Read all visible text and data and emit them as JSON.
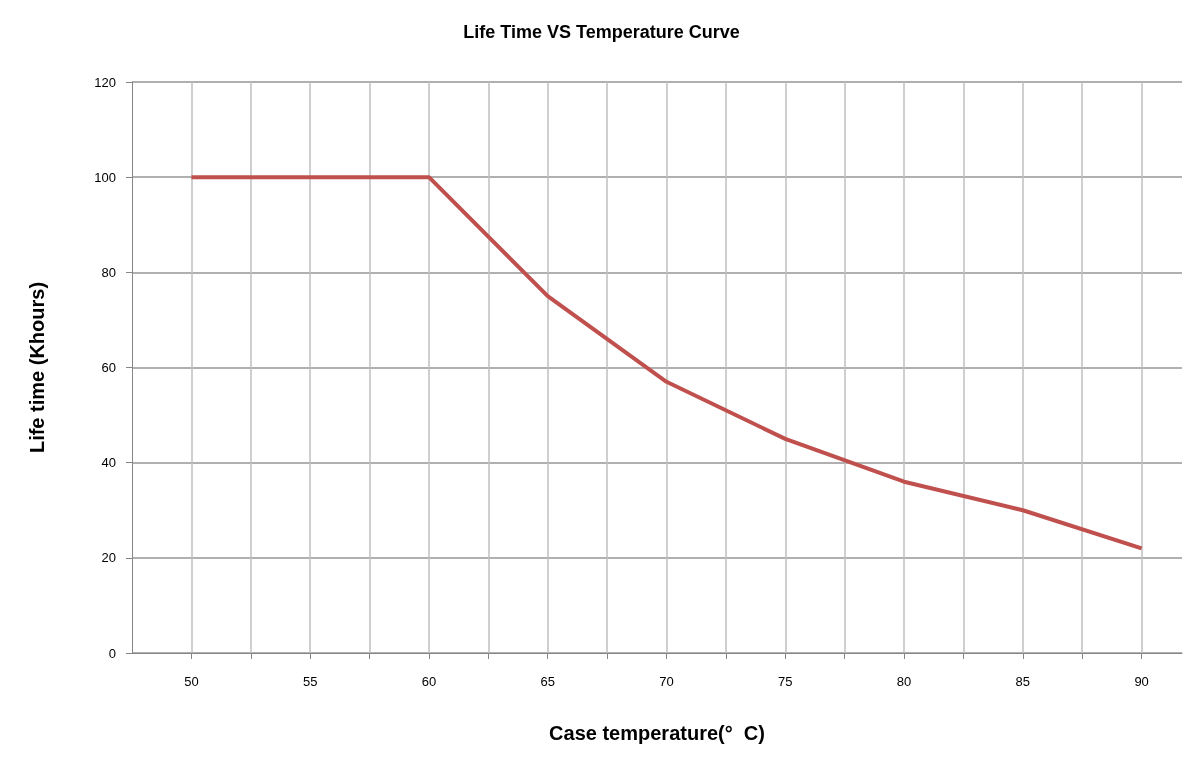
{
  "chart_data": {
    "type": "line",
    "title": "Life Time VS Temperature Curve",
    "xlabel": "Case temperature(°  C)",
    "ylabel": "Life time (Khours)",
    "x": [
      50,
      60,
      65,
      70,
      75,
      80,
      85,
      90
    ],
    "series": [
      {
        "color": "#c0504d",
        "values": [
          100,
          100,
          75,
          57,
          45,
          36,
          30,
          22
        ]
      }
    ],
    "xlim": [
      47.5,
      91.7
    ],
    "xticks": [
      50,
      {
        "value": 52.5,
        "label": null
      },
      55,
      {
        "value": 57.5,
        "label": null
      },
      60,
      {
        "value": 62.5,
        "label": null
      },
      65,
      {
        "value": 67.5,
        "label": null
      },
      70,
      {
        "value": 72.5,
        "label": null
      },
      75,
      {
        "value": 77.5,
        "label": null
      },
      80,
      {
        "value": 82.5,
        "label": null
      },
      85,
      {
        "value": 87.5,
        "label": null
      },
      90
    ],
    "ylim": [
      0,
      120
    ],
    "yticks": [
      0,
      20,
      40,
      60,
      80,
      100,
      120
    ],
    "grid": true,
    "marker": "none",
    "line_style": "solid"
  }
}
